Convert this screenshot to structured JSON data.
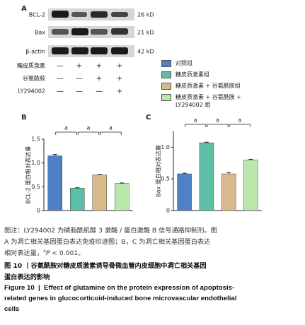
{
  "panel_a": {
    "label": "A",
    "blots": [
      {
        "protein": "BCL-2",
        "size": "26 kD"
      },
      {
        "protein": "Bax",
        "size": "21 kD"
      },
      {
        "protein": "β-actin",
        "size": "42 kD"
      }
    ],
    "treatments": [
      {
        "name": "糖皮质激素",
        "signs": [
          "—",
          "+",
          "+",
          "+"
        ]
      },
      {
        "name": "谷氨酰胺",
        "signs": [
          "—",
          "—",
          "+",
          "+"
        ]
      },
      {
        "name": "LY294002",
        "signs": [
          "—",
          "—",
          "—",
          "+"
        ]
      }
    ]
  },
  "legend": [
    {
      "name": "对照组",
      "color": "#4f81c4"
    },
    {
      "name": "糖皮质激素组",
      "color": "#5dbfa3"
    },
    {
      "name": "糖皮质激素 + 谷氨酰胺组",
      "color": "#d8ba8c"
    },
    {
      "name": "糖皮质激素 + 谷氨酰胺 + LY294002 组",
      "color": "#b9e7ac"
    }
  ],
  "chart_data": [
    {
      "type": "bar",
      "panel": "B",
      "y_label": "BCL-2 蛋白相对表达量",
      "values": [
        1.15,
        0.47,
        0.75,
        0.57
      ],
      "errors": [
        0.03,
        0.01,
        0.01,
        0.01
      ],
      "colors": [
        "#4f81c4",
        "#5dbfa3",
        "#d8ba8c",
        "#b9e7ac"
      ],
      "ylim": [
        0,
        1.5
      ],
      "yticks": [
        0,
        0.5,
        {
          "value": 1,
          "label": "1.0"
        },
        1.5
      ],
      "significance": [
        "a",
        "a",
        "a"
      ]
    },
    {
      "type": "bar",
      "panel": "C",
      "y_label": "Bax 蛋白相对表达量",
      "values": [
        0.58,
        1.07,
        0.58,
        0.8
      ],
      "errors": [
        0.01,
        0.01,
        0.02,
        0.01
      ],
      "colors": [
        "#4f81c4",
        "#5dbfa3",
        "#d8ba8c",
        "#b9e7ac"
      ],
      "ylim": [
        0,
        1.25
      ],
      "yticks": [
        0,
        0.5,
        {
          "value": 1,
          "label": "1.0"
        }
      ],
      "significance": [
        "a",
        "a",
        "a"
      ]
    }
  ],
  "caption": {
    "note_lines": [
      "图注：LY294002 为磷脂酰肌醇 3 激酶 / 蛋白激酶 B 信号通路抑制剂。图",
      "A 为凋亡相关基因蛋白表达免疫印迹图；B，C 为凋亡相关基因蛋白表达"
    ],
    "note_last": "相对表达量，",
    "sig_mark": "a",
    "p_symbol": "P",
    "p_text": " < 0.001。",
    "title_cn_lines": [
      "图 10 丨谷氨酰胺对糖皮质激素诱导骨微血管内皮细胞中凋亡相关基因",
      "蛋白表达的影响"
    ],
    "title_en_lines": [
      "Figure 10  |  Effect of glutamine on the protein expression of apoptosis-",
      "related genes in glucocorticoid-induced bone microvascular endothelial",
      "cells"
    ]
  }
}
